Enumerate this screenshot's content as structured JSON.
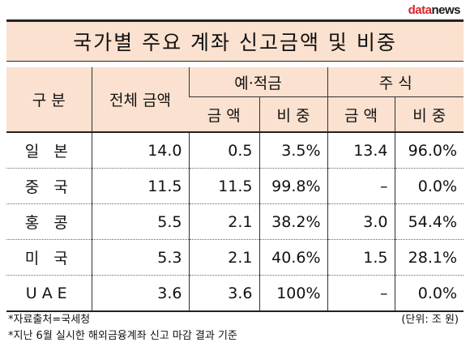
{
  "logo": {
    "part1": "data",
    "part2": "news"
  },
  "title": "국가별 주요 계좌 신고금액 및 비중",
  "header": {
    "category": "구 분",
    "total": "전체 금액",
    "deposit": "예·적금",
    "stock": "주 식",
    "amount": "금 액",
    "share": "비 중"
  },
  "rows": [
    {
      "country": "일 본",
      "total": "14.0",
      "dep_amount": "0.5",
      "dep_share": "3.5%",
      "stock_amount": "13.4",
      "stock_share": "96.0%"
    },
    {
      "country": "중 국",
      "total": "11.5",
      "dep_amount": "11.5",
      "dep_share": "99.8%",
      "stock_amount": "–",
      "stock_share": "0.0%"
    },
    {
      "country": "홍 콩",
      "total": "5.5",
      "dep_amount": "2.1",
      "dep_share": "38.2%",
      "stock_amount": "3.0",
      "stock_share": "54.4%"
    },
    {
      "country": "미 국",
      "total": "5.3",
      "dep_amount": "2.1",
      "dep_share": "40.6%",
      "stock_amount": "1.5",
      "stock_share": "28.1%"
    },
    {
      "country": "UAE",
      "total": "3.6",
      "dep_amount": "3.6",
      "dep_share": "100%",
      "stock_amount": "–",
      "stock_share": "0.0%"
    }
  ],
  "footer": {
    "source": "*자료출처=국세청",
    "note": "*지난 6월 실시한 해외금융계좌 신고 마감 결과 기준",
    "unit": "(단위: 조 원)"
  }
}
